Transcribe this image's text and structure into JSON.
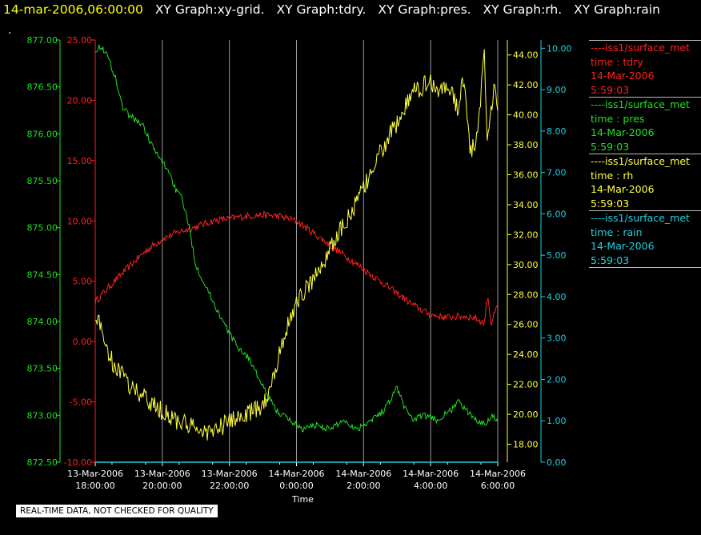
{
  "header": {
    "timestamp": "14-mar-2006,06:00:00",
    "titles": [
      "XY Graph:xy-grid.",
      "XY Graph:tdry.",
      "XY Graph:pres.",
      "XY Graph:rh.",
      "XY Graph:rain"
    ],
    "dot": "."
  },
  "notice": "REAL-TIME DATA, NOT CHECKED FOR QUALITY",
  "legend": [
    {
      "dash": "----",
      "source": "iss1/surface_met",
      "var": "time : tdry",
      "date": "14-Mar-2006",
      "time": "5:59:03",
      "color": "#ff2020"
    },
    {
      "dash": "----",
      "source": "iss1/surface_met",
      "var": "time : pres",
      "date": "14-Mar-2006",
      "time": "5:59:03",
      "color": "#20e020"
    },
    {
      "dash": "----",
      "source": "iss1/surface_met",
      "var": "time : rh",
      "date": "14-Mar-2006",
      "time": "5:59:03",
      "color": "#ffff40"
    },
    {
      "dash": "----",
      "source": "iss1/surface_met",
      "var": "time : rain",
      "date": "14-Mar-2006",
      "time": "5:59:03",
      "color": "#20d0e0"
    }
  ],
  "chart_data": {
    "type": "line",
    "xlabel": "Time",
    "x_range": [
      "2006-03-13T18:00:00",
      "2006-03-14T06:00:00"
    ],
    "x_ticks": [
      {
        "date": "13-Mar-2006",
        "time": "18:00:00",
        "t": "2006-03-13T18:00:00"
      },
      {
        "date": "13-Mar-2006",
        "time": "20:00:00",
        "t": "2006-03-13T20:00:00"
      },
      {
        "date": "13-Mar-2006",
        "time": "22:00:00",
        "t": "2006-03-13T22:00:00"
      },
      {
        "date": "14-Mar-2006",
        "time": "0:00:00",
        "t": "2006-03-14T00:00:00"
      },
      {
        "date": "14-Mar-2006",
        "time": "2:00:00",
        "t": "2006-03-14T02:00:00"
      },
      {
        "date": "14-Mar-2006",
        "time": "4:00:00",
        "t": "2006-03-14T04:00:00"
      },
      {
        "date": "14-Mar-2006",
        "time": "6:00:00",
        "t": "2006-03-14T06:00:00"
      }
    ],
    "grid": "vertical",
    "axes": {
      "pres": {
        "color": "#20e020",
        "range": [
          872.5,
          877.0
        ],
        "ticks": [
          "877.00",
          "876.50",
          "876.00",
          "875.50",
          "875.00",
          "874.50",
          "874.00",
          "873.50",
          "873.00",
          "872.50"
        ]
      },
      "tdry": {
        "color": "#ff2020",
        "range": [
          -10,
          25
        ],
        "ticks": [
          "25.00",
          "20.00",
          "15.00",
          "10.00",
          "5.00",
          "0.00",
          "-5.00",
          "-10.00"
        ]
      },
      "rh": {
        "color": "#ffff40",
        "range": [
          16.8,
          45.0
        ],
        "ticks": [
          "44.00",
          "42.00",
          "40.00",
          "38.00",
          "36.00",
          "34.00",
          "32.00",
          "30.00",
          "28.00",
          "26.00",
          "24.00",
          "22.00",
          "20.00",
          "18.00"
        ]
      },
      "rain": {
        "color": "#20d0e0",
        "range": [
          0,
          10.2
        ],
        "ticks": [
          "10.00",
          "9.00",
          "8.00",
          "7.00",
          "6.00",
          "5.00",
          "4.00",
          "3.00",
          "2.00",
          "1.00",
          "0.00"
        ]
      }
    },
    "series": [
      {
        "var": "tdry",
        "axis": "tdry",
        "color": "#ff2020",
        "noise": 0.3,
        "points": [
          [
            0,
            3.3
          ],
          [
            0.5,
            4.8
          ],
          [
            1,
            6.2
          ],
          [
            1.5,
            7.5
          ],
          [
            2,
            8.5
          ],
          [
            2.5,
            9.1
          ],
          [
            3,
            9.5
          ],
          [
            3.5,
            10.0
          ],
          [
            4,
            10.2
          ],
          [
            4.5,
            10.4
          ],
          [
            5,
            10.5
          ],
          [
            5.5,
            10.4
          ],
          [
            6,
            10.0
          ],
          [
            6.5,
            9.0
          ],
          [
            7,
            8.0
          ],
          [
            7.5,
            7.0
          ],
          [
            8,
            6.0
          ],
          [
            8.5,
            5.0
          ],
          [
            9,
            4.0
          ],
          [
            9.5,
            3.0
          ],
          [
            10,
            2.2
          ],
          [
            10.5,
            2.0
          ],
          [
            11,
            2.1
          ],
          [
            11.3,
            2.0
          ],
          [
            11.6,
            1.5
          ],
          [
            11.7,
            4.0
          ],
          [
            11.8,
            1.5
          ],
          [
            12,
            3.0
          ]
        ]
      },
      {
        "var": "pres",
        "axis": "pres",
        "color": "#20e020",
        "noise": 0.035,
        "points": [
          [
            0,
            876.9
          ],
          [
            0.2,
            876.93
          ],
          [
            0.4,
            876.8
          ],
          [
            0.6,
            876.6
          ],
          [
            0.8,
            876.3
          ],
          [
            1,
            876.2
          ],
          [
            1.4,
            876.1
          ],
          [
            1.8,
            875.8
          ],
          [
            2.2,
            875.6
          ],
          [
            2.4,
            875.4
          ],
          [
            2.6,
            875.3
          ],
          [
            2.8,
            875.0
          ],
          [
            3,
            874.6
          ],
          [
            3.4,
            874.3
          ],
          [
            3.8,
            874.0
          ],
          [
            4.2,
            873.75
          ],
          [
            4.6,
            873.6
          ],
          [
            5,
            873.3
          ],
          [
            5.4,
            873.05
          ],
          [
            5.8,
            872.95
          ],
          [
            6.2,
            872.85
          ],
          [
            6.6,
            872.9
          ],
          [
            7,
            872.85
          ],
          [
            7.4,
            872.95
          ],
          [
            7.8,
            872.85
          ],
          [
            8.2,
            872.95
          ],
          [
            8.6,
            873.05
          ],
          [
            9,
            873.3
          ],
          [
            9.2,
            873.1
          ],
          [
            9.5,
            872.95
          ],
          [
            9.8,
            873.0
          ],
          [
            10.2,
            872.95
          ],
          [
            10.6,
            873.05
          ],
          [
            10.8,
            873.15
          ],
          [
            11.2,
            873.0
          ],
          [
            11.6,
            872.9
          ],
          [
            11.8,
            873.0
          ],
          [
            12,
            872.95
          ]
        ]
      },
      {
        "var": "rh",
        "axis": "rh",
        "color": "#ffff40",
        "noise": 0.65,
        "points": [
          [
            0,
            26.8
          ],
          [
            0.2,
            25.5
          ],
          [
            0.5,
            23.5
          ],
          [
            1,
            22.0
          ],
          [
            1.5,
            21.0
          ],
          [
            2,
            20.2
          ],
          [
            2.5,
            19.5
          ],
          [
            3,
            19.0
          ],
          [
            3.5,
            18.8
          ],
          [
            4,
            19.5
          ],
          [
            4.5,
            20.0
          ],
          [
            5,
            20.5
          ],
          [
            5.3,
            22.5
          ],
          [
            5.6,
            25.0
          ],
          [
            6,
            27.5
          ],
          [
            6.5,
            29.0
          ],
          [
            7,
            31.0
          ],
          [
            7.5,
            33.0
          ],
          [
            8,
            35.0
          ],
          [
            8.5,
            37.5
          ],
          [
            9,
            39.5
          ],
          [
            9.5,
            41.5
          ],
          [
            10,
            42.3
          ],
          [
            10.2,
            41.5
          ],
          [
            10.5,
            42.0
          ],
          [
            10.8,
            40.5
          ],
          [
            11,
            42.5
          ],
          [
            11.1,
            39.0
          ],
          [
            11.2,
            37.5
          ],
          [
            11.4,
            38.5
          ],
          [
            11.6,
            44.2
          ],
          [
            11.7,
            38.0
          ],
          [
            11.9,
            42.0
          ],
          [
            12,
            40.5
          ]
        ]
      },
      {
        "var": "rain",
        "axis": "rain",
        "color": "#20d0e0",
        "noise": 0,
        "points": [
          [
            0,
            0
          ],
          [
            12,
            0
          ]
        ]
      }
    ]
  }
}
